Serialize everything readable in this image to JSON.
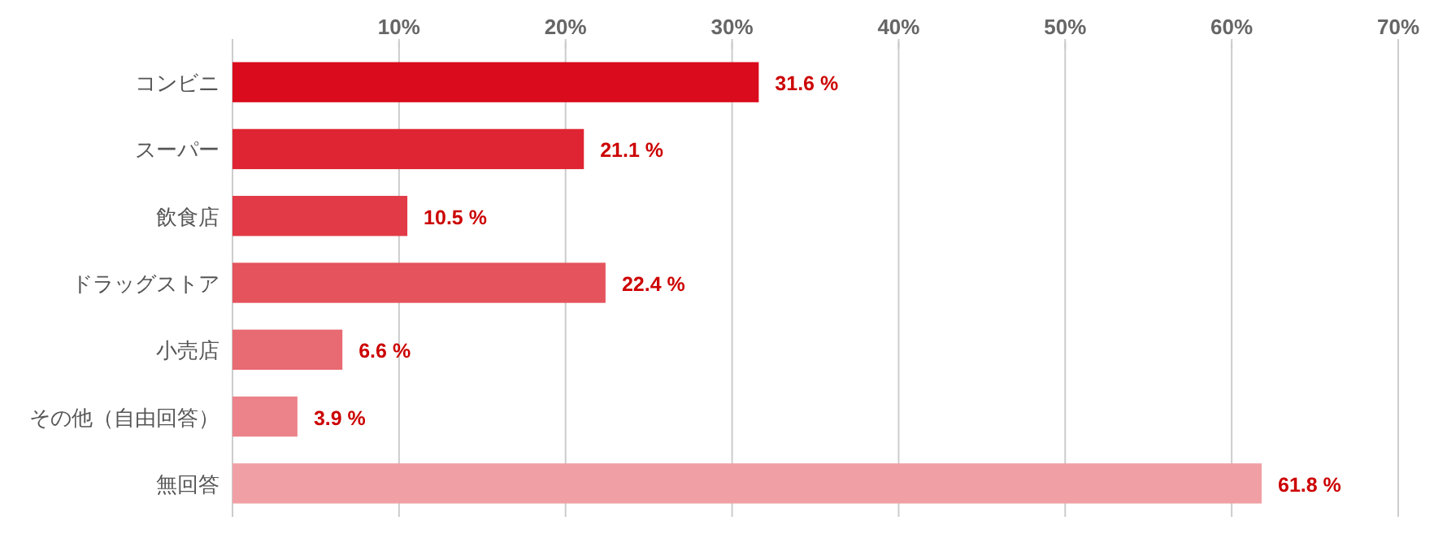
{
  "chart_data": {
    "type": "bar",
    "orientation": "horizontal",
    "categories": [
      "コンビニ",
      "スーパー",
      "飲食店",
      "ドラッグストア",
      "小売店",
      "その他（自由回答）",
      "無回答"
    ],
    "values": [
      31.6,
      21.1,
      10.5,
      22.4,
      6.6,
      3.9,
      61.8
    ],
    "value_labels": [
      "31.6 %",
      "21.1 %",
      "10.5 %",
      "22.4 %",
      "6.6 %",
      "3.9 %",
      "61.8 %"
    ],
    "colors": [
      "#d90b1c",
      "#df2433",
      "#e23a47",
      "#e5535d",
      "#e86a72",
      "#ec838a",
      "#f0a0a5"
    ],
    "xlim": [
      0,
      70
    ],
    "xticks": [
      {
        "value": 0,
        "label": null
      },
      {
        "value": 10,
        "label": "10%"
      },
      {
        "value": 20,
        "label": "20%"
      },
      {
        "value": 30,
        "label": "30%"
      },
      {
        "value": 40,
        "label": "40%"
      },
      {
        "value": 50,
        "label": "50%"
      },
      {
        "value": 60,
        "label": "60%"
      },
      {
        "value": 70,
        "label": "70%"
      }
    ],
    "grid": "x"
  }
}
